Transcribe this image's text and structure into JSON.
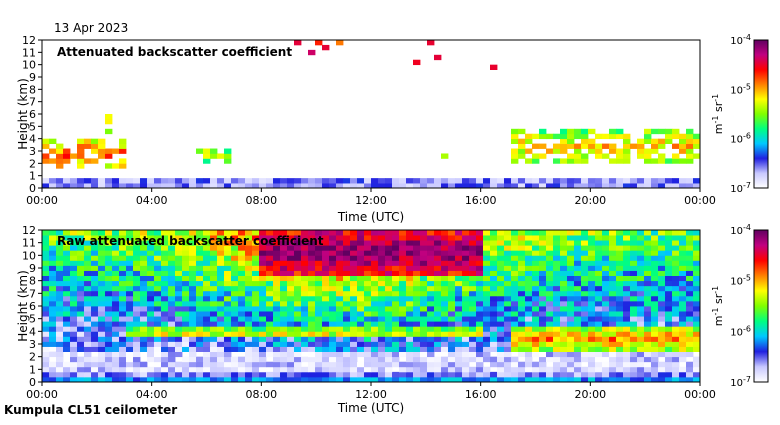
{
  "date": "13 Apr 2023",
  "footer": "Kumpula CL51 ceilometer",
  "colorbar": {
    "tick_labels": [
      "10-4",
      "10-5",
      "10-6",
      "10-7"
    ],
    "exponents": [
      "-4",
      "-5",
      "-6",
      "-7"
    ],
    "unit_base": "m",
    "unit_exp1": "-1",
    "unit_base2": "sr",
    "unit_exp2": "-1",
    "colors": [
      "#ffffff",
      "#c8c8ff",
      "#2020e0",
      "#00c8ff",
      "#00ff80",
      "#80ff00",
      "#ffff00",
      "#ff8000",
      "#ff0000",
      "#c00080",
      "#600060"
    ]
  },
  "chart_data": [
    {
      "type": "heatmap",
      "title": "Attenuated backscatter coefficient",
      "xlabel": "Time (UTC)",
      "ylabel": "Height (km)",
      "x_ticks": [
        "00:00",
        "04:00",
        "08:00",
        "12:00",
        "16:00",
        "20:00",
        "00:00"
      ],
      "x_range": [
        0,
        24
      ],
      "y_ticks": [
        "0",
        "1",
        "2",
        "3",
        "4",
        "5",
        "6",
        "7",
        "8",
        "9",
        "10",
        "11",
        "12"
      ],
      "ylim": [
        0,
        12
      ],
      "color_scale": "log",
      "color_range": [
        1e-07,
        0.0001
      ],
      "features": [
        {
          "kind": "near-surface layer",
          "t": [
            0,
            24
          ],
          "h": [
            0,
            0.9
          ],
          "level": -6.6
        },
        {
          "kind": "low cloud",
          "t": [
            0,
            3
          ],
          "h": [
            1.5,
            4
          ],
          "level": -5.3
        },
        {
          "kind": "cloud patch",
          "t": [
            2.3,
            2.6
          ],
          "h": [
            4.6,
            5.9
          ],
          "level": -5.5
        },
        {
          "kind": "cloud patch",
          "t": [
            5.5,
            7.5
          ],
          "h": [
            2.0,
            3.2
          ],
          "level": -5.7
        },
        {
          "kind": "cloud patch",
          "t": [
            14.3,
            14.9
          ],
          "h": [
            2.4,
            3.0
          ],
          "level": -5.8
        },
        {
          "kind": "cloud layer",
          "t": [
            17,
            24
          ],
          "h": [
            2.0,
            4.8
          ],
          "level": -5.6
        },
        {
          "kind": "high speckles",
          "t": [
            9,
            17
          ],
          "h": [
            9.5,
            12
          ],
          "level": -4.8
        }
      ]
    },
    {
      "type": "heatmap",
      "title": "Raw attenuated backscatter coefficient",
      "xlabel": "Time (UTC)",
      "ylabel": "Height (km)",
      "x_ticks": [
        "00:00",
        "04:00",
        "08:00",
        "12:00",
        "16:00",
        "20:00",
        "00:00"
      ],
      "x_range": [
        0,
        24
      ],
      "y_ticks": [
        "0",
        "1",
        "2",
        "3",
        "4",
        "5",
        "6",
        "7",
        "8",
        "9",
        "10",
        "11",
        "12"
      ],
      "ylim": [
        0,
        12
      ],
      "color_scale": "log",
      "color_range": [
        1e-07,
        0.0001
      ],
      "features": [
        {
          "kind": "near-surface layer",
          "t": [
            0,
            24
          ],
          "h": [
            0,
            0.9
          ],
          "level": -6.6
        },
        {
          "kind": "aerosol layer top",
          "t": [
            3,
            16
          ],
          "h": [
            3.5,
            4.3
          ],
          "level": -5.7
        },
        {
          "kind": "cloud layer",
          "t": [
            17,
            24
          ],
          "h": [
            2.6,
            4.2
          ],
          "level": -5.4
        },
        {
          "kind": "noise maximum",
          "t": [
            8,
            16
          ],
          "h": [
            8.5,
            12
          ],
          "level": -4.6
        }
      ]
    }
  ]
}
